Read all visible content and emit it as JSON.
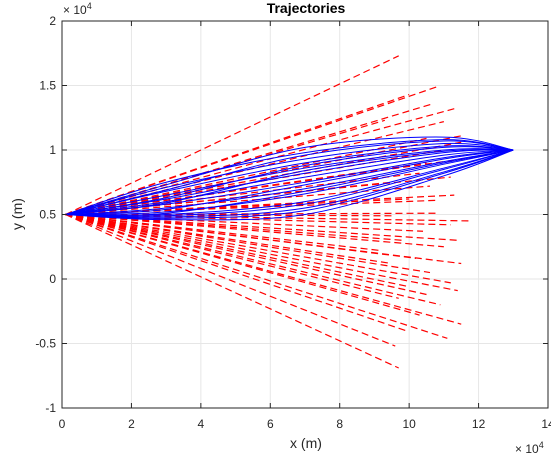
{
  "chart_data": {
    "type": "line",
    "title": "Trajectories",
    "xlabel": "x (m)",
    "ylabel": "y (m)",
    "x_exponent_base": "× 10",
    "x_exponent_power": "4",
    "y_exponent_base": "× 10",
    "y_exponent_power": "4",
    "xlim": [
      0,
      140000
    ],
    "ylim": [
      -10000,
      20000
    ],
    "x_ticks": [
      0,
      20000,
      40000,
      60000,
      80000,
      100000,
      120000,
      140000
    ],
    "x_tick_labels": [
      "0",
      "2",
      "4",
      "6",
      "8",
      "10",
      "12",
      "14"
    ],
    "y_ticks": [
      -10000,
      -5000,
      0,
      5000,
      10000,
      15000,
      20000
    ],
    "y_tick_labels": [
      "-1",
      "-0.5",
      "0",
      "0.5",
      "1",
      "1.5",
      "2"
    ],
    "grid": true,
    "colors": {
      "blue": "#0000ff",
      "red": "#ff0000",
      "grid": "#e6e6e6",
      "axis": "#262626"
    },
    "series": [
      {
        "style": "solid",
        "color": "#0000ff",
        "start": [
          1000,
          5000
        ],
        "end": [
          130000,
          10000
        ],
        "lines": [
          [
            [
              1000,
              5000
            ],
            [
              30000,
              7500
            ],
            [
              70000,
              9800
            ],
            [
              110000,
              10800
            ],
            [
              130000,
              10000
            ]
          ],
          [
            [
              1000,
              5000
            ],
            [
              30000,
              7100
            ],
            [
              70000,
              9300
            ],
            [
              110000,
              10500
            ],
            [
              130000,
              10000
            ]
          ],
          [
            [
              1000,
              5000
            ],
            [
              30000,
              6800
            ],
            [
              70000,
              9000
            ],
            [
              110000,
              10300
            ],
            [
              130000,
              10000
            ]
          ],
          [
            [
              1000,
              5000
            ],
            [
              30000,
              6500
            ],
            [
              70000,
              8600
            ],
            [
              110000,
              10000
            ],
            [
              130000,
              10000
            ]
          ],
          [
            [
              1000,
              5000
            ],
            [
              30000,
              6200
            ],
            [
              70000,
              8200
            ],
            [
              110000,
              9800
            ],
            [
              130000,
              10000
            ]
          ],
          [
            [
              1000,
              5000
            ],
            [
              30000,
              6000
            ],
            [
              70000,
              7900
            ],
            [
              110000,
              9600
            ],
            [
              130000,
              10000
            ]
          ],
          [
            [
              1000,
              5000
            ],
            [
              30000,
              5800
            ],
            [
              70000,
              7500
            ],
            [
              110000,
              9400
            ],
            [
              130000,
              10000
            ]
          ],
          [
            [
              1000,
              5000
            ],
            [
              30000,
              5500
            ],
            [
              70000,
              7000
            ],
            [
              110000,
              9100
            ],
            [
              130000,
              10000
            ]
          ],
          [
            [
              1000,
              5000
            ],
            [
              30000,
              5200
            ],
            [
              70000,
              6600
            ],
            [
              110000,
              8900
            ],
            [
              130000,
              10000
            ]
          ],
          [
            [
              1000,
              5000
            ],
            [
              30000,
              5000
            ],
            [
              70000,
              6000
            ],
            [
              110000,
              8600
            ],
            [
              130000,
              10000
            ]
          ],
          [
            [
              1000,
              5000
            ],
            [
              30000,
              4800
            ],
            [
              70000,
              5500
            ],
            [
              110000,
              8300
            ],
            [
              130000,
              10000
            ]
          ],
          [
            [
              1000,
              5000
            ],
            [
              30000,
              4600
            ],
            [
              70000,
              5000
            ],
            [
              110000,
              8000
            ],
            [
              130000,
              10000
            ]
          ],
          [
            [
              1000,
              5000
            ],
            [
              30000,
              7300
            ],
            [
              70000,
              10200
            ],
            [
              110000,
              11000
            ],
            [
              130000,
              10000
            ]
          ],
          [
            [
              1000,
              5000
            ],
            [
              30000,
              6900
            ],
            [
              70000,
              9600
            ],
            [
              110000,
              10700
            ],
            [
              130000,
              10000
            ]
          ],
          [
            [
              1000,
              5000
            ],
            [
              30000,
              6300
            ],
            [
              70000,
              8800
            ],
            [
              110000,
              10200
            ],
            [
              130000,
              10000
            ]
          ],
          [
            [
              1000,
              5000
            ],
            [
              30000,
              5900
            ],
            [
              70000,
              8400
            ],
            [
              110000,
              9900
            ],
            [
              130000,
              10000
            ]
          ],
          [
            [
              1000,
              5000
            ],
            [
              30000,
              5400
            ],
            [
              70000,
              7300
            ],
            [
              110000,
              9300
            ],
            [
              130000,
              10000
            ]
          ],
          [
            [
              1000,
              5000
            ],
            [
              30000,
              5100
            ],
            [
              70000,
              6800
            ],
            [
              110000,
              9000
            ],
            [
              130000,
              10000
            ]
          ],
          [
            [
              1000,
              5000
            ],
            [
              30000,
              4900
            ],
            [
              70000,
              5800
            ],
            [
              110000,
              8500
            ],
            [
              130000,
              10000
            ]
          ],
          [
            [
              1000,
              5000
            ],
            [
              30000,
              4700
            ],
            [
              70000,
              5300
            ],
            [
              110000,
              8200
            ],
            [
              130000,
              10000
            ]
          ]
        ]
      },
      {
        "style": "dashed",
        "color": "#ff0000",
        "start": [
          1000,
          5000
        ],
        "endpoints": [
          [
            97000,
            17300
          ],
          [
            108000,
            14900
          ],
          [
            113000,
            13200
          ],
          [
            110000,
            12200
          ],
          [
            105000,
            10900
          ],
          [
            110000,
            10000
          ],
          [
            115000,
            11100
          ],
          [
            100000,
            14300
          ],
          [
            93000,
            12300
          ],
          [
            107000,
            13600
          ],
          [
            115000,
            10600
          ],
          [
            105000,
            9000
          ],
          [
            118000,
            9400
          ],
          [
            103000,
            8200
          ],
          [
            112000,
            7900
          ],
          [
            95000,
            7500
          ],
          [
            106000,
            7200
          ],
          [
            113000,
            6500
          ],
          [
            100000,
            6200
          ],
          [
            118000,
            4500
          ],
          [
            108000,
            5100
          ],
          [
            95000,
            4900
          ],
          [
            112000,
            4200
          ],
          [
            104000,
            3700
          ],
          [
            114000,
            3000
          ],
          [
            98000,
            3000
          ],
          [
            110000,
            2500
          ],
          [
            102000,
            1600
          ],
          [
            115000,
            1200
          ],
          [
            95000,
            1200
          ],
          [
            106000,
            500
          ],
          [
            112000,
            -300
          ],
          [
            100000,
            -600
          ],
          [
            114000,
            -900
          ],
          [
            97000,
            -1500
          ],
          [
            109000,
            -2000
          ],
          [
            103000,
            -2800
          ],
          [
            115000,
            -3500
          ],
          [
            99000,
            -4000
          ],
          [
            111000,
            -4600
          ],
          [
            96000,
            -5200
          ],
          [
            97000,
            -6900
          ],
          [
            105000,
            -1200
          ],
          [
            92000,
            2200
          ],
          [
            108000,
            6100
          ]
        ]
      }
    ]
  }
}
